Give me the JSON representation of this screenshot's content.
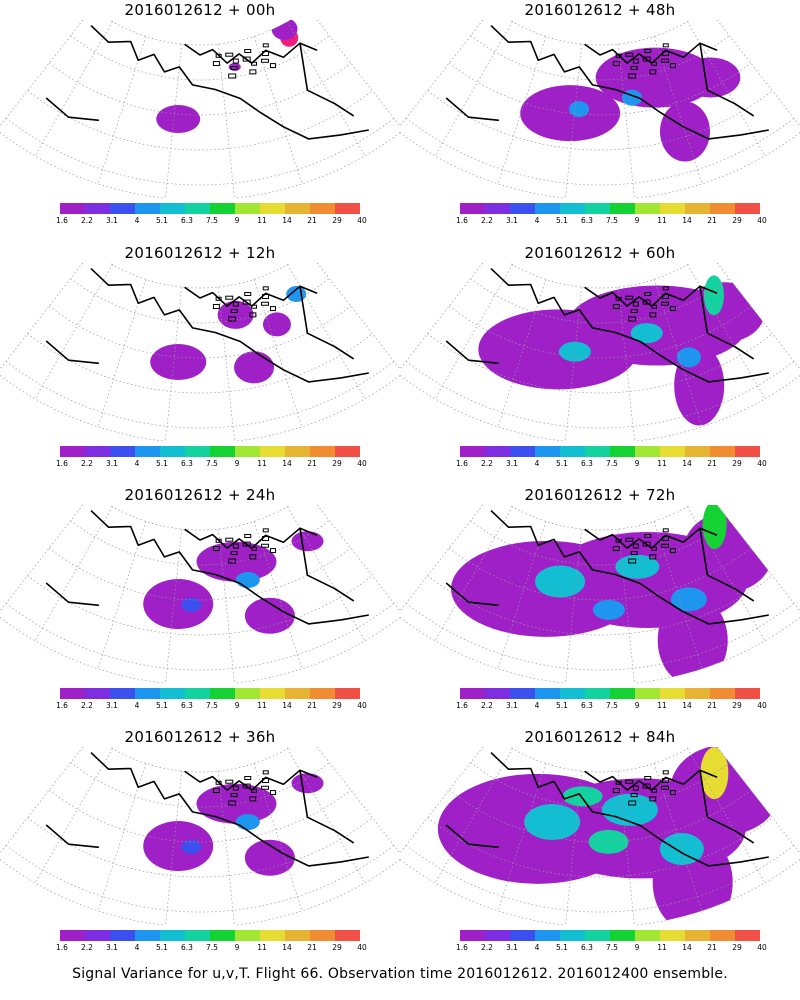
{
  "panels": [
    {
      "title": "2016012612 + 00h",
      "level": 0
    },
    {
      "title": "2016012612 + 48h",
      "level": 3
    },
    {
      "title": "2016012612 + 12h",
      "level": 1
    },
    {
      "title": "2016012612 + 60h",
      "level": 4
    },
    {
      "title": "2016012612 + 24h",
      "level": 2
    },
    {
      "title": "2016012612 + 72h",
      "level": 5
    },
    {
      "title": "2016012612 + 36h",
      "level": 2
    },
    {
      "title": "2016012612 + 84h",
      "level": 6
    }
  ],
  "colorbar": {
    "colors": [
      "#a020c8",
      "#7c2ee0",
      "#3c50f0",
      "#1e96f0",
      "#14bed2",
      "#14d2a0",
      "#14d232",
      "#a0e632",
      "#e6dc32",
      "#e6b432",
      "#f08c32",
      "#f05046",
      "#f01e78"
    ],
    "labels": [
      "1.6",
      "2.2",
      "3.1",
      "4",
      "5.1",
      "6.3",
      "7.5",
      "9",
      "11",
      "14",
      "21",
      "29",
      "40"
    ]
  },
  "caption": "Signal Variance for u,v,T. Flight 66. Observation time 2016012612. 2016012400 ensemble."
}
